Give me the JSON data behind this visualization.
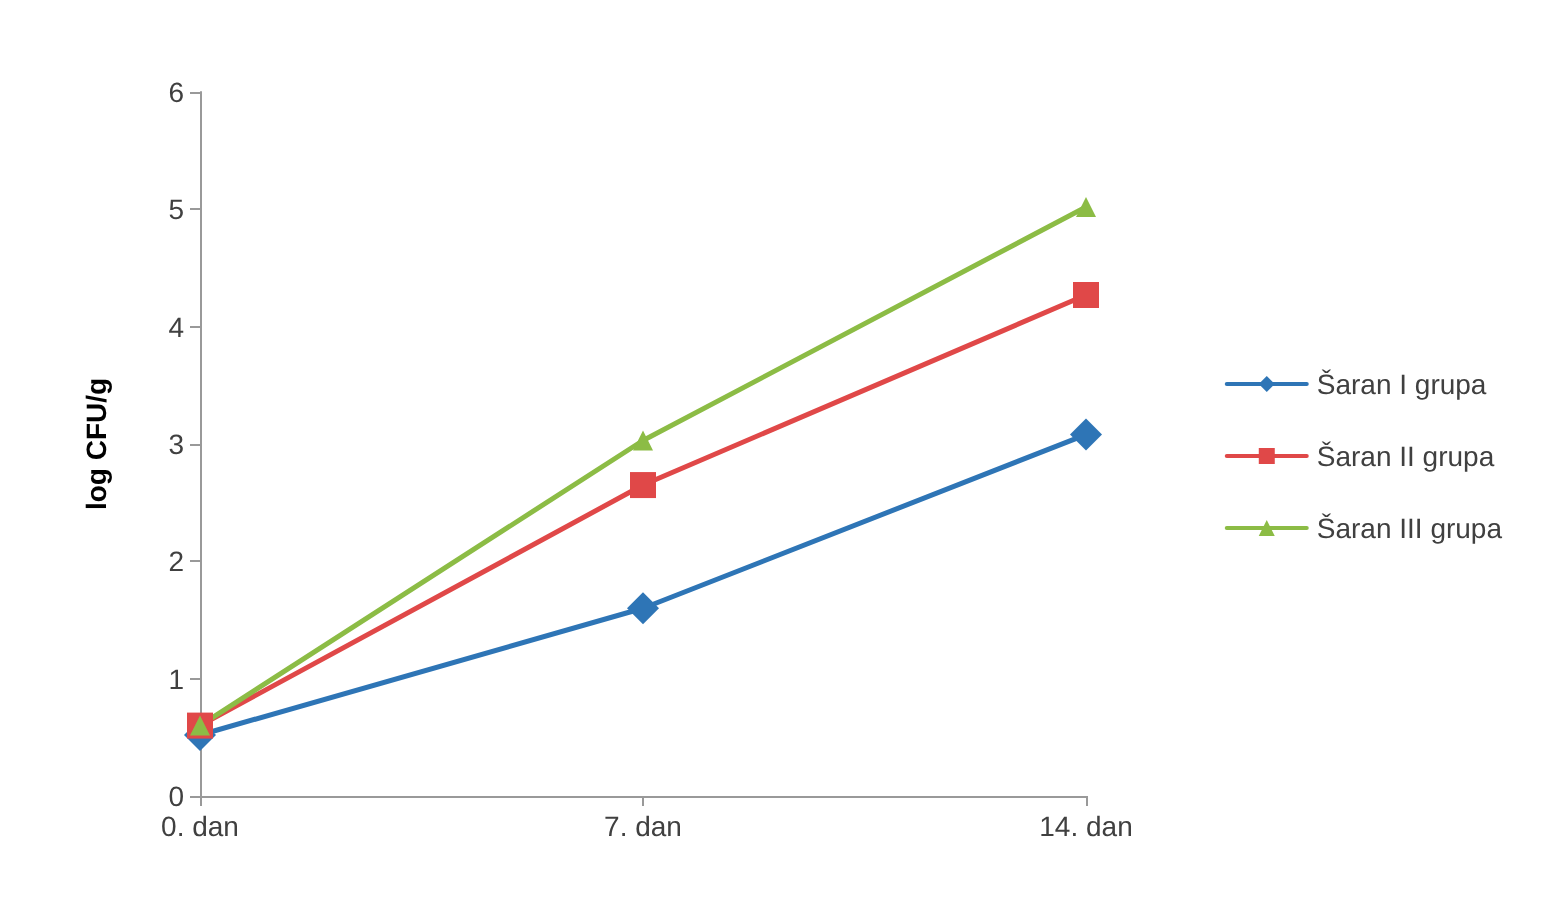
{
  "chart_data": {
    "type": "line",
    "ylabel": "log CFU/g",
    "categories": [
      "0. dan",
      "7. dan",
      "14. dan"
    ],
    "series": [
      {
        "name": "Šaran I grupa",
        "color": "#2e75b6",
        "marker": "diamond",
        "values": [
          0.52,
          1.6,
          3.08
        ]
      },
      {
        "name": "Šaran II grupa",
        "color": "#e04848",
        "marker": "square",
        "values": [
          0.6,
          2.65,
          4.27
        ]
      },
      {
        "name": "Šaran III grupa",
        "color": "#8cbc45",
        "marker": "triangle",
        "values": [
          0.6,
          3.03,
          5.02
        ]
      }
    ],
    "ylim": [
      0,
      6
    ],
    "yticks": [
      0,
      1,
      2,
      3,
      4,
      5,
      6
    ],
    "grid": false,
    "legend": "right",
    "line_style": "solid"
  }
}
